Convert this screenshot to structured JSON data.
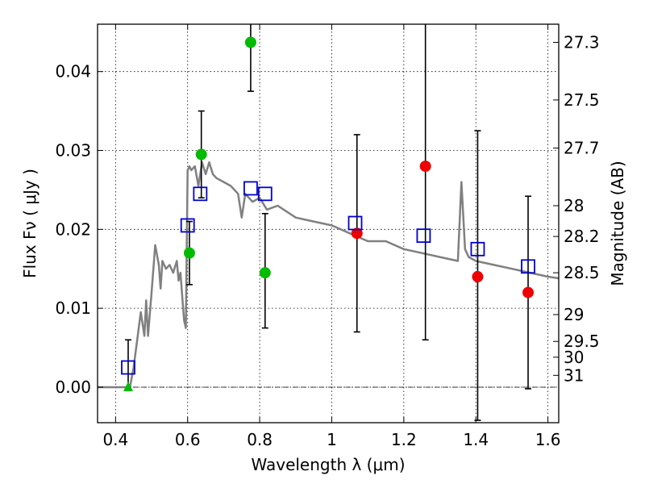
{
  "chart_data": {
    "type": "scatter",
    "xlabel": "Wavelength  λ (μm)",
    "ylabel": "Flux  Fν  ( μJy )",
    "right_ylabel": "Magnitude (AB)",
    "xlim": [
      0.35,
      1.63
    ],
    "ylim": [
      -0.0045,
      0.046
    ],
    "grid": true,
    "x_ticks": [
      0.4,
      0.6,
      0.8,
      1.0,
      1.2,
      1.4,
      1.6
    ],
    "x_tick_labels": [
      "0.4",
      "0.6",
      "0.8",
      "1",
      "1.2",
      "1.4",
      "1.6"
    ],
    "y_ticks": [
      0.0,
      0.01,
      0.02,
      0.03,
      0.04
    ],
    "y_tick_labels": [
      "0.00",
      "0.01",
      "0.02",
      "0.03",
      "0.04"
    ],
    "right_ticks": [
      {
        "label": "27.3",
        "flux": 0.0437
      },
      {
        "label": "27.5",
        "flux": 0.0364
      },
      {
        "label": "27.7",
        "flux": 0.0303
      },
      {
        "label": "28",
        "flux": 0.023
      },
      {
        "label": "28.2",
        "flux": 0.0191
      },
      {
        "label": "28.5",
        "flux": 0.0145
      },
      {
        "label": "29",
        "flux": 0.0092
      },
      {
        "label": "29.5",
        "flux": 0.0058
      },
      {
        "label": "30",
        "flux": 0.0038
      },
      {
        "label": "31",
        "flux": 0.0015
      }
    ],
    "colors": {
      "model": "#808080",
      "model_photometry": "#0000cc",
      "hst_points": "#00bb00",
      "ir_points": "#ee0000",
      "error_bars": "#000000"
    },
    "model_spectrum": {
      "x": [
        0.35,
        0.43,
        0.44,
        0.45,
        0.46,
        0.47,
        0.48,
        0.485,
        0.49,
        0.5,
        0.51,
        0.52,
        0.525,
        0.53,
        0.54,
        0.55,
        0.56,
        0.57,
        0.575,
        0.58,
        0.59,
        0.595,
        0.6,
        0.605,
        0.61,
        0.62,
        0.63,
        0.64,
        0.65,
        0.66,
        0.67,
        0.68,
        0.7,
        0.72,
        0.74,
        0.75,
        0.76,
        0.77,
        0.78,
        0.8,
        0.82,
        0.85,
        0.9,
        0.95,
        1.0,
        1.05,
        1.1,
        1.15,
        1.2,
        1.25,
        1.3,
        1.35,
        1.36,
        1.37,
        1.38,
        1.4,
        1.45,
        1.5,
        1.55,
        1.6,
        1.63
      ],
      "y": [
        0.0,
        0.0,
        0.0,
        0.0025,
        0.006,
        0.0095,
        0.0065,
        0.011,
        0.0065,
        0.012,
        0.018,
        0.0155,
        0.0125,
        0.016,
        0.015,
        0.0155,
        0.0145,
        0.016,
        0.0135,
        0.0145,
        0.0085,
        0.0075,
        0.0275,
        0.028,
        0.0275,
        0.028,
        0.0255,
        0.0285,
        0.027,
        0.0285,
        0.027,
        0.0265,
        0.026,
        0.0255,
        0.0245,
        0.0215,
        0.0245,
        0.024,
        0.0235,
        0.024,
        0.0225,
        0.023,
        0.0215,
        0.021,
        0.0205,
        0.0195,
        0.0185,
        0.0185,
        0.0175,
        0.017,
        0.0165,
        0.016,
        0.026,
        0.0175,
        0.0165,
        0.016,
        0.0155,
        0.015,
        0.0145,
        0.014,
        0.0138
      ]
    },
    "model_photometry": {
      "x": [
        0.435,
        0.6,
        0.635,
        0.775,
        0.815,
        1.065,
        1.255,
        1.405,
        1.545
      ],
      "y": [
        0.0025,
        0.0205,
        0.0245,
        0.0252,
        0.0245,
        0.0208,
        0.0192,
        0.0175,
        0.0153
      ]
    },
    "measured_points": [
      {
        "x": 0.435,
        "y": 0.0,
        "err_low": null,
        "err_high": 0.006,
        "marker": "triangle",
        "color": "green"
      },
      {
        "x": 0.605,
        "y": 0.017,
        "err_low": 0.013,
        "err_high": 0.021,
        "marker": "circle",
        "color": "green"
      },
      {
        "x": 0.638,
        "y": 0.0295,
        "err_low": 0.024,
        "err_high": 0.035,
        "marker": "circle",
        "color": "green"
      },
      {
        "x": 0.775,
        "y": 0.0437,
        "err_low": 0.0375,
        "err_high": 0.046,
        "marker": "circle",
        "color": "green"
      },
      {
        "x": 0.815,
        "y": 0.0145,
        "err_low": 0.0075,
        "err_high": 0.022,
        "marker": "circle",
        "color": "green"
      },
      {
        "x": 1.07,
        "y": 0.0195,
        "err_low": 0.007,
        "err_high": 0.032,
        "marker": "circle",
        "color": "red"
      },
      {
        "x": 1.26,
        "y": 0.028,
        "err_low": 0.006,
        "err_high": 0.046,
        "marker": "circle",
        "color": "red"
      },
      {
        "x": 1.405,
        "y": 0.014,
        "err_low": -0.0042,
        "err_high": 0.0325,
        "marker": "circle",
        "color": "red"
      },
      {
        "x": 1.545,
        "y": 0.012,
        "err_low": -0.0002,
        "err_high": 0.0242,
        "marker": "circle",
        "color": "red"
      }
    ]
  }
}
